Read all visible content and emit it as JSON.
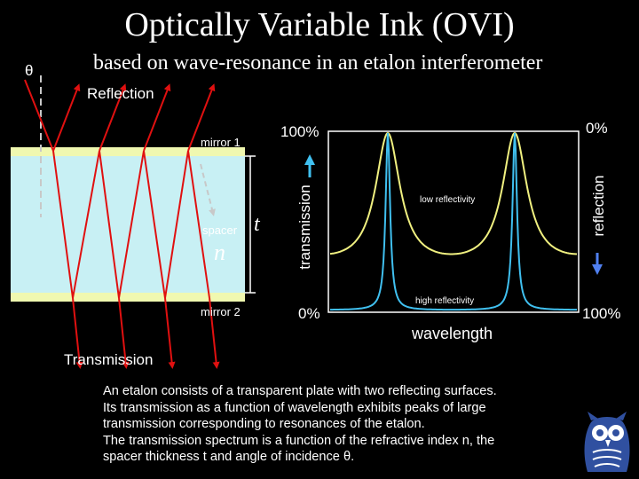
{
  "title": "Optically Variable Ink (OVI)",
  "subtitle": "based on wave-resonance in an etalon interferometer",
  "theta_symbol": "θ",
  "labels": {
    "reflection": "Reflection",
    "transmission": "Transmission",
    "mirror1": "mirror 1",
    "mirror2": "mirror 2",
    "spacer": "spacer",
    "n": "n",
    "t": "t"
  },
  "chart": {
    "y_left_label": "transmission",
    "y_right_label": "reflection",
    "y_left_top": "100%",
    "y_left_bottom": "0%",
    "y_right_top": "0%",
    "y_right_bottom": "100%",
    "x_label": "wavelength",
    "low_reflectivity": "low reflectivity",
    "high_reflectivity": "high reflectivity",
    "curve_colors": {
      "low": "#f0f080",
      "high": "#40c0f0"
    }
  },
  "caption": [
    "An etalon consists of a transparent plate with two reflecting surfaces.",
    "Its transmission as a function of wavelength exhibits peaks of large",
    "transmission corresponding to resonances of the etalon.",
    "The transmission spectrum is a function of the refractive index n, the",
    "spacer thickness t and angle of incidence θ."
  ],
  "colors": {
    "plate": "#c8f0f4",
    "mirror": "#f0f8b0",
    "ray": "#e01010",
    "dashed": "#c8c8c8"
  },
  "logo_icon": "owl-logo-icon"
}
